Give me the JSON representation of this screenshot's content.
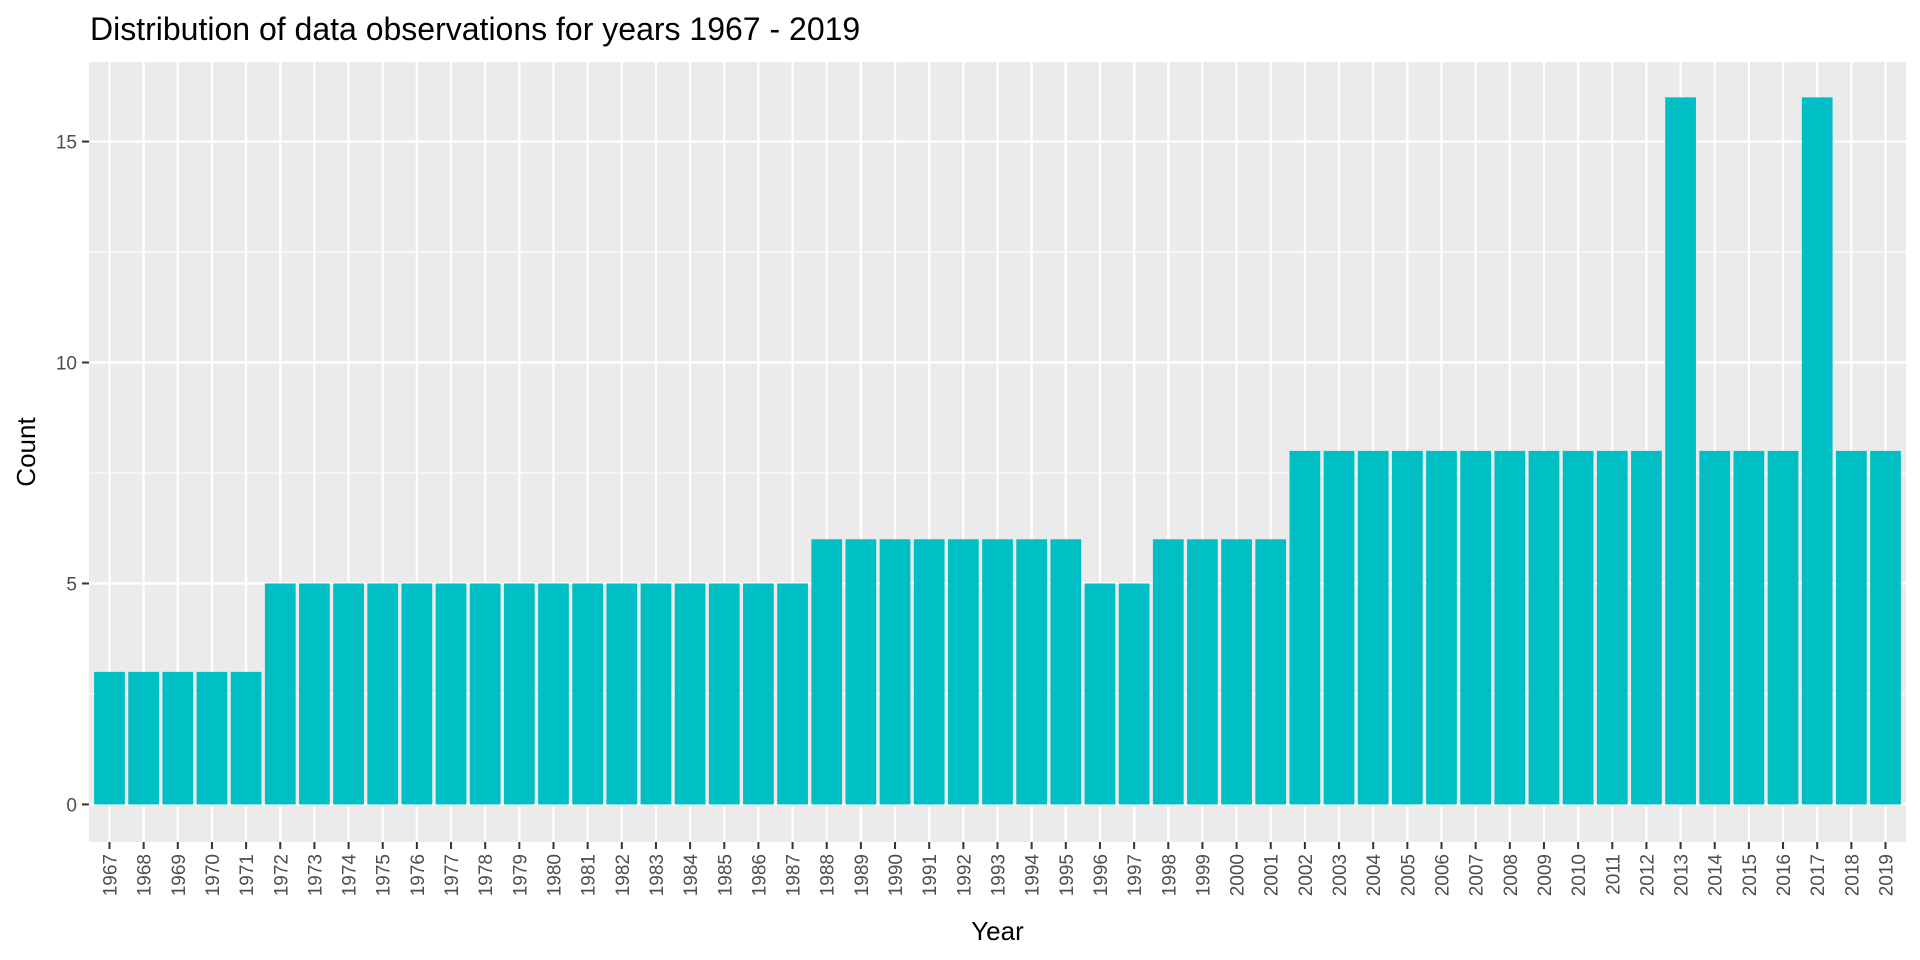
{
  "chart_data": {
    "type": "bar",
    "title": "Distribution of data observations for years 1967 - 2019",
    "xlabel": "Year",
    "ylabel": "Count",
    "ylim": [
      -0.85,
      16.8
    ],
    "yticks": [
      0,
      5,
      10,
      15
    ],
    "grid": true,
    "bar_color": "#00BFC4",
    "panel_color": "#EBEBEB",
    "categories": [
      "1967",
      "1968",
      "1969",
      "1970",
      "1971",
      "1972",
      "1973",
      "1974",
      "1975",
      "1976",
      "1977",
      "1978",
      "1979",
      "1980",
      "1981",
      "1982",
      "1983",
      "1984",
      "1985",
      "1986",
      "1987",
      "1988",
      "1989",
      "1990",
      "1991",
      "1992",
      "1993",
      "1994",
      "1995",
      "1996",
      "1997",
      "1998",
      "1999",
      "2000",
      "2001",
      "2002",
      "2003",
      "2004",
      "2005",
      "2006",
      "2007",
      "2008",
      "2009",
      "2010",
      "2011",
      "2012",
      "2013",
      "2014",
      "2015",
      "2016",
      "2017",
      "2018",
      "2019"
    ],
    "values": [
      3,
      3,
      3,
      3,
      3,
      5,
      5,
      5,
      5,
      5,
      5,
      5,
      5,
      5,
      5,
      5,
      5,
      5,
      5,
      5,
      5,
      6,
      6,
      6,
      6,
      6,
      6,
      6,
      6,
      5,
      5,
      6,
      6,
      6,
      6,
      8,
      8,
      8,
      8,
      8,
      8,
      8,
      8,
      8,
      8,
      8,
      16,
      8,
      8,
      8,
      16,
      8,
      8
    ]
  }
}
